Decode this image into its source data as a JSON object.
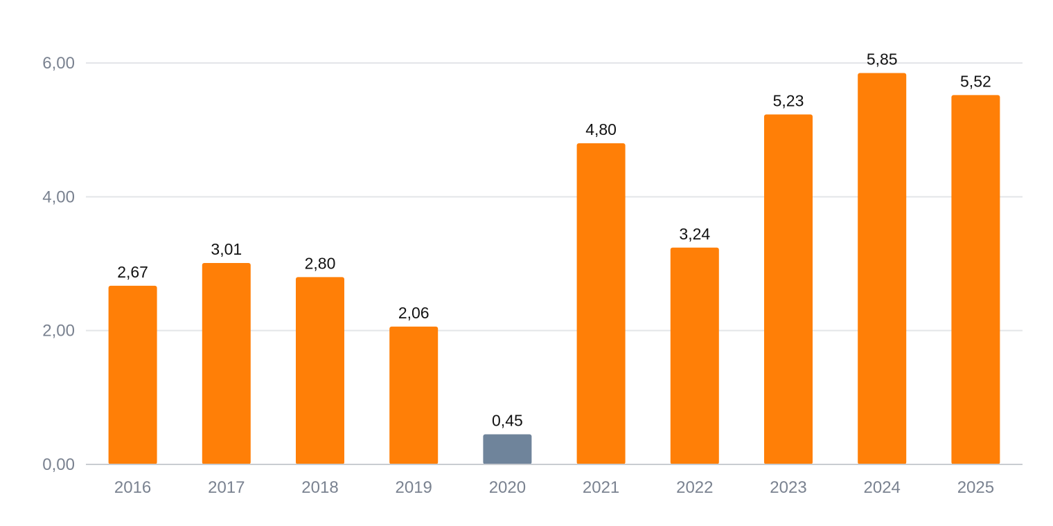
{
  "chart_data": {
    "type": "bar",
    "title": "",
    "xlabel": "",
    "ylabel": "",
    "categories": [
      "2016",
      "2017",
      "2018",
      "2019",
      "2020",
      "2021",
      "2022",
      "2023",
      "2024",
      "2025"
    ],
    "values": [
      2.67,
      3.01,
      2.8,
      2.06,
      0.45,
      4.8,
      3.24,
      5.23,
      5.85,
      5.52
    ],
    "value_labels": [
      "2,67",
      "3,01",
      "2,80",
      "2,06",
      "0,45",
      "4,80",
      "3,24",
      "5,23",
      "5,85",
      "5,52"
    ],
    "ylim": [
      0,
      6
    ],
    "y_ticks": [
      {
        "value": 0,
        "label": "0,00"
      },
      {
        "value": 2,
        "label": "2,00"
      },
      {
        "value": 4,
        "label": "4,00"
      },
      {
        "value": 6,
        "label": "6,00"
      }
    ],
    "grid": true,
    "legend": "none",
    "colors": {
      "default_bar": "#ff7f07",
      "highlight_bar": "#6f849b",
      "highlight_category": "2020"
    }
  }
}
